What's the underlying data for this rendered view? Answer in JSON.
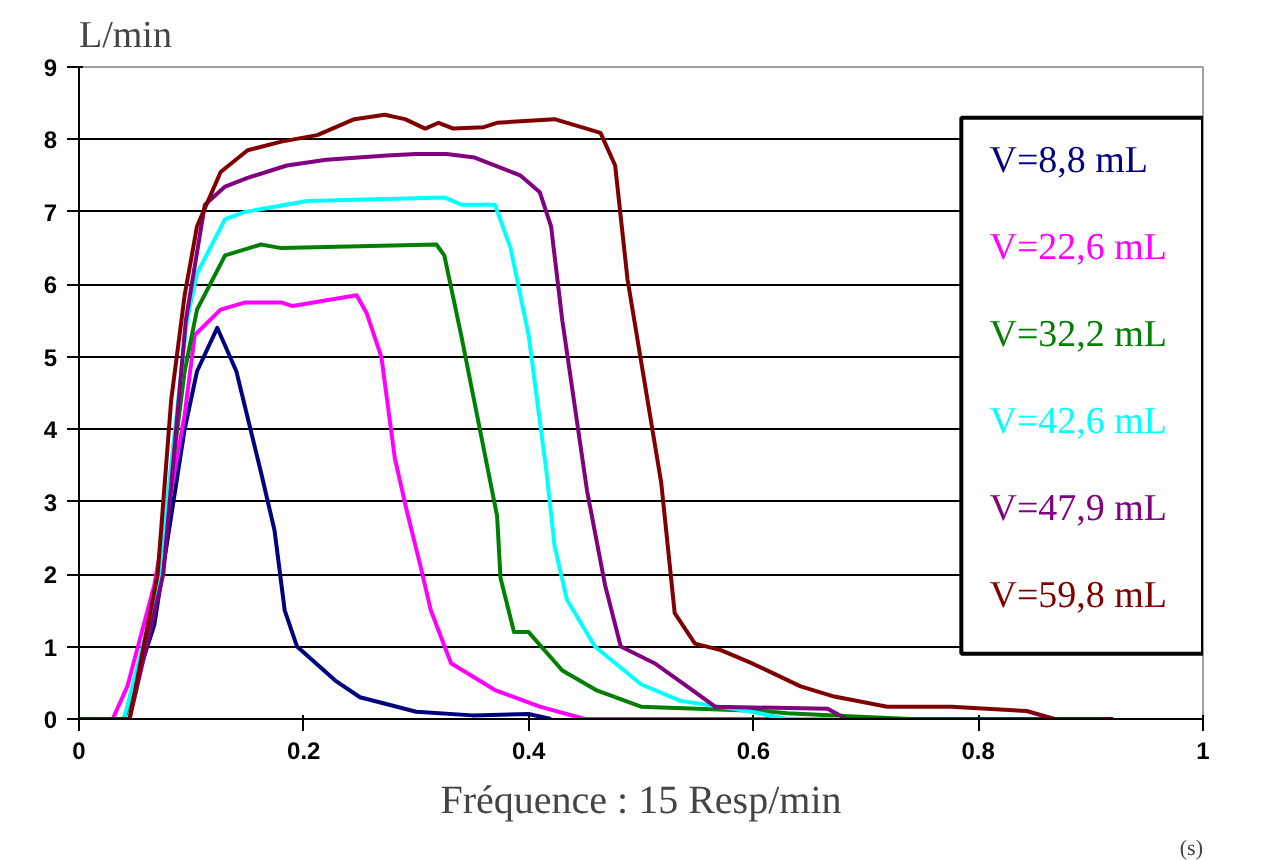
{
  "chart_data": {
    "type": "line",
    "title": "Fréquence : 15 Resp/min",
    "xlabel": "(s)",
    "ylabel": "L/min",
    "xlim": [
      0,
      1
    ],
    "ylim": [
      0,
      9
    ],
    "xticks": [
      0,
      0.2,
      0.4,
      0.6,
      0.8,
      1
    ],
    "yticks": [
      0,
      1,
      2,
      3,
      4,
      5,
      6,
      7,
      8,
      9
    ],
    "grid": "y",
    "legend": "right",
    "line_style": "solid",
    "marker": "none",
    "series": [
      {
        "name": "V=8,8 mL",
        "color": "#000080",
        "x": [
          0,
          0.04,
          0.067,
          0.094,
          0.105,
          0.123,
          0.14,
          0.162,
          0.174,
          0.183,
          0.194,
          0.228,
          0.25,
          0.3,
          0.35,
          0.4,
          0.42
        ],
        "values": [
          0,
          0,
          1.3,
          4.0,
          4.8,
          5.4,
          4.8,
          3.4,
          2.6,
          1.5,
          1.0,
          0.53,
          0.3,
          0.1,
          0.05,
          0.07,
          0
        ]
      },
      {
        "name": "V=22,6 mL",
        "color": "#ff00ff",
        "x": [
          0,
          0.03,
          0.043,
          0.067,
          0.094,
          0.103,
          0.126,
          0.148,
          0.18,
          0.19,
          0.247,
          0.256,
          0.269,
          0.281,
          0.292,
          0.304,
          0.313,
          0.331,
          0.37,
          0.41,
          0.45,
          0.7
        ],
        "values": [
          0,
          0,
          0.45,
          1.85,
          4.2,
          5.3,
          5.65,
          5.75,
          5.75,
          5.7,
          5.85,
          5.6,
          5.0,
          3.6,
          2.85,
          2.1,
          1.5,
          0.77,
          0.4,
          0.17,
          0,
          0
        ]
      },
      {
        "name": "V=32,2 mL",
        "color": "#008000",
        "x": [
          0,
          0.04,
          0.047,
          0.07,
          0.094,
          0.105,
          0.13,
          0.162,
          0.18,
          0.318,
          0.325,
          0.34,
          0.372,
          0.375,
          0.387,
          0.4,
          0.43,
          0.46,
          0.5,
          0.607,
          0.63,
          0.695,
          0.74
        ],
        "values": [
          0,
          0,
          0.3,
          1.85,
          4.8,
          5.65,
          6.4,
          6.55,
          6.5,
          6.55,
          6.4,
          5.3,
          2.8,
          1.95,
          1.2,
          1.2,
          0.67,
          0.4,
          0.17,
          0.11,
          0.08,
          0.03,
          0
        ]
      },
      {
        "name": "V=42,6 mL",
        "color": "#00ffff",
        "x": [
          0,
          0.04,
          0.07,
          0.096,
          0.105,
          0.13,
          0.148,
          0.203,
          0.325,
          0.34,
          0.37,
          0.384,
          0.4,
          0.416,
          0.423,
          0.434,
          0.459,
          0.5,
          0.535,
          0.595,
          0.63,
          0.7
        ],
        "values": [
          0,
          0,
          1.8,
          5.5,
          6.15,
          6.9,
          7.0,
          7.15,
          7.2,
          7.1,
          7.1,
          6.5,
          5.3,
          3.4,
          2.4,
          1.65,
          1.0,
          0.48,
          0.25,
          0.11,
          0,
          0
        ]
      },
      {
        "name": "V=47,9 mL",
        "color": "#800080",
        "x": [
          0,
          0.045,
          0.075,
          0.095,
          0.112,
          0.13,
          0.15,
          0.185,
          0.22,
          0.274,
          0.3,
          0.327,
          0.352,
          0.393,
          0.41,
          0.42,
          0.43,
          0.452,
          0.468,
          0.482,
          0.512,
          0.541,
          0.566,
          0.666,
          0.683,
          0.92
        ],
        "values": [
          0,
          0,
          2.0,
          5.5,
          7.1,
          7.35,
          7.47,
          7.64,
          7.72,
          7.78,
          7.8,
          7.8,
          7.75,
          7.5,
          7.27,
          6.8,
          5.5,
          3.15,
          1.85,
          1.0,
          0.77,
          0.45,
          0.17,
          0.14,
          0,
          0
        ]
      },
      {
        "name": "V=59,8 mL",
        "color": "#800000",
        "x": [
          0,
          0.045,
          0.07,
          0.082,
          0.094,
          0.105,
          0.126,
          0.15,
          0.18,
          0.212,
          0.245,
          0.272,
          0.29,
          0.308,
          0.32,
          0.333,
          0.36,
          0.372,
          0.423,
          0.447,
          0.464,
          0.477,
          0.488,
          0.518,
          0.53,
          0.548,
          0.571,
          0.6,
          0.642,
          0.672,
          0.719,
          0.776,
          0.843,
          0.868,
          0.92
        ],
        "values": [
          0,
          0,
          2.0,
          4.4,
          5.85,
          6.8,
          7.55,
          7.85,
          7.97,
          8.06,
          8.28,
          8.34,
          8.28,
          8.15,
          8.23,
          8.15,
          8.17,
          8.23,
          8.28,
          8.17,
          8.09,
          7.64,
          6.07,
          3.26,
          1.46,
          1.04,
          0.95,
          0.76,
          0.45,
          0.31,
          0.17,
          0.17,
          0.11,
          0,
          0
        ]
      }
    ]
  }
}
